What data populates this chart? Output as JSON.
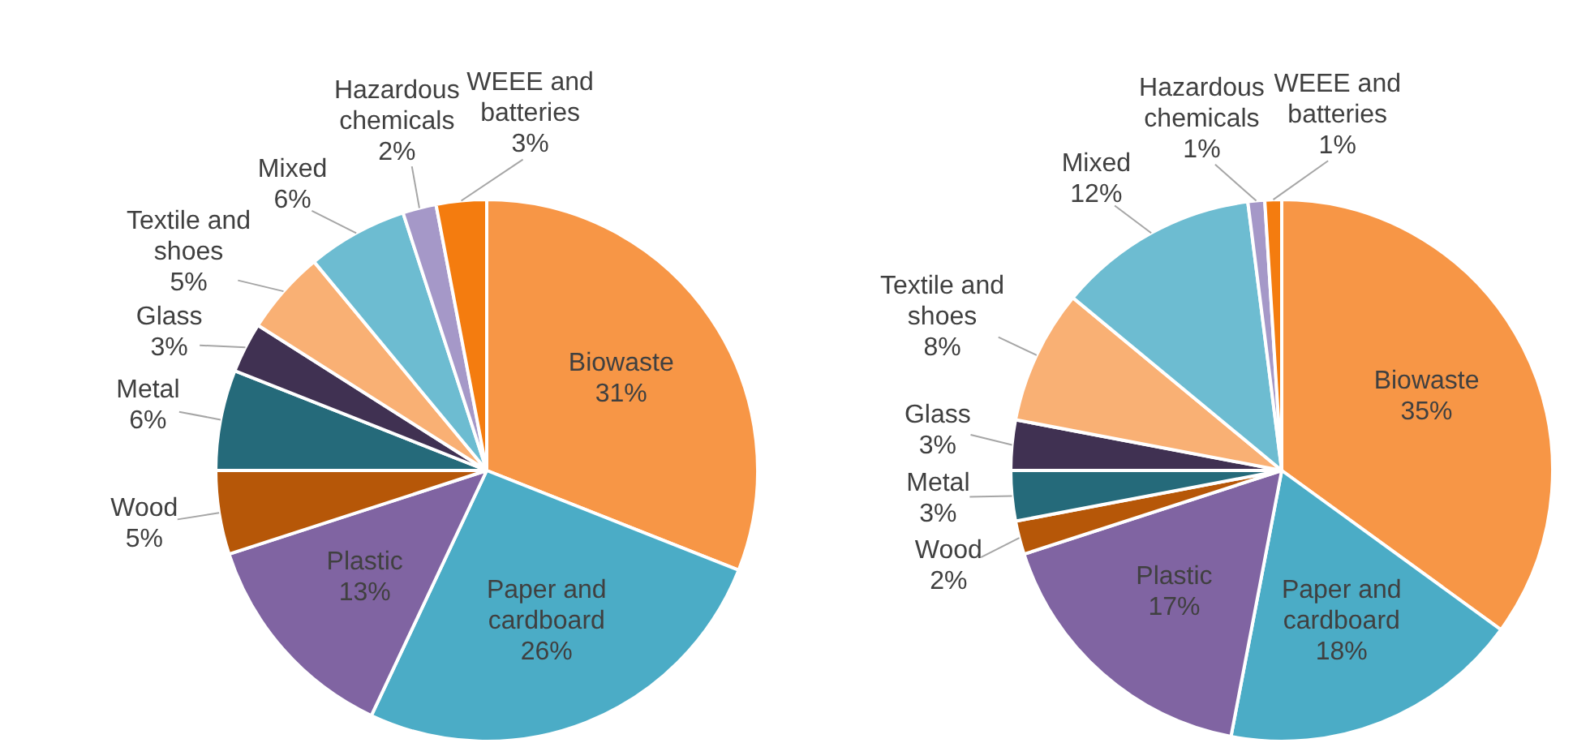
{
  "chart_data": [
    {
      "type": "pie",
      "categories": [
        "Biowaste",
        "Paper and cardboard",
        "Plastic",
        "Wood",
        "Metal",
        "Glass",
        "Textile and shoes",
        "Mixed",
        "Hazardous chemicals",
        "WEEE and batteries"
      ],
      "values": [
        31,
        26,
        13,
        5,
        6,
        3,
        5,
        6,
        2,
        3
      ],
      "value_labels": [
        "31%",
        "26%",
        "13%",
        "5%",
        "6%",
        "3%",
        "5%",
        "6%",
        "2%",
        "3%"
      ],
      "colors": [
        "#f79646",
        "#4bacc6",
        "#8064a2",
        "#b65708",
        "#256a7a",
        "#403152",
        "#f9b074",
        "#6dbcd1",
        "#a598c8",
        "#f47c0f"
      ]
    },
    {
      "type": "pie",
      "categories": [
        "Biowaste",
        "Paper and cardboard",
        "Plastic",
        "Wood",
        "Metal",
        "Glass",
        "Textile and shoes",
        "Mixed",
        "Hazardous chemicals",
        "WEEE and batteries"
      ],
      "values": [
        35,
        18,
        17,
        2,
        3,
        3,
        8,
        12,
        1,
        1
      ],
      "value_labels": [
        "35%",
        "18%",
        "17%",
        "2%",
        "3%",
        "3%",
        "8%",
        "12%",
        "1%",
        "1%"
      ],
      "colors": [
        "#f79646",
        "#4bacc6",
        "#8064a2",
        "#b65708",
        "#256a7a",
        "#403152",
        "#f9b074",
        "#6dbcd1",
        "#a598c8",
        "#f47c0f"
      ]
    }
  ]
}
